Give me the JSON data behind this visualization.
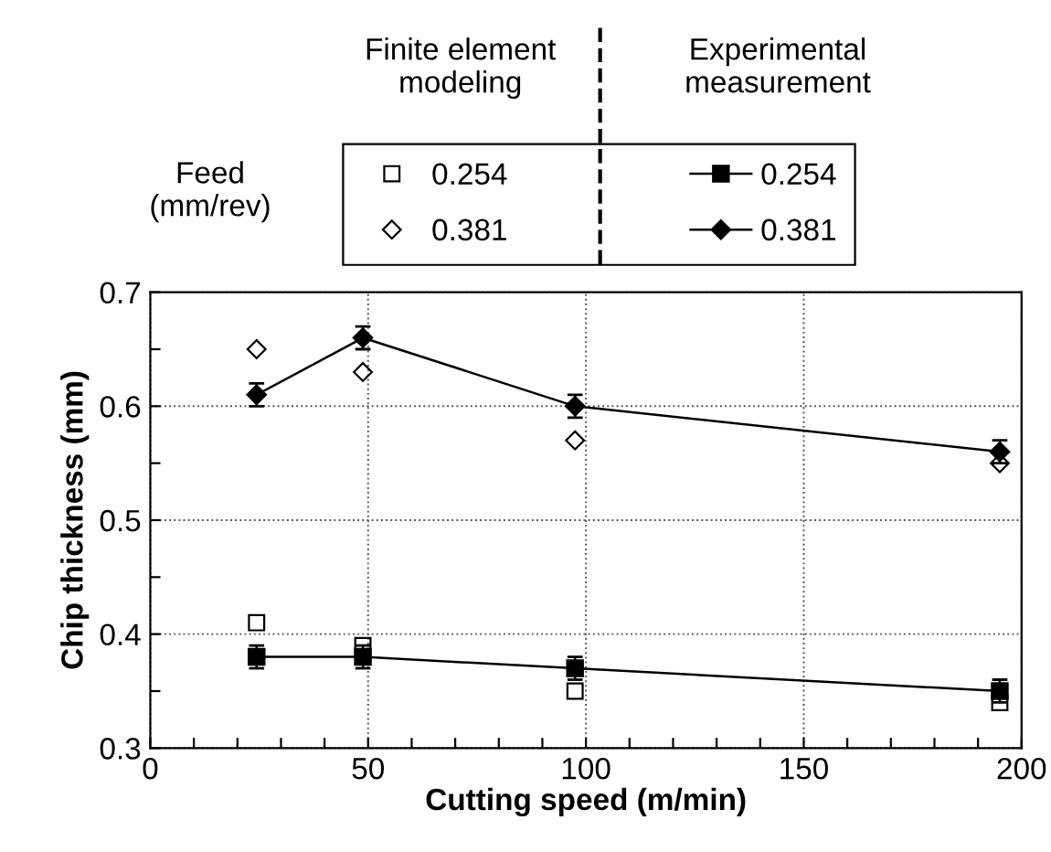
{
  "chart_data": {
    "type": "line",
    "xlabel": "Cutting speed (m/min)",
    "ylabel": "Chip thickness (mm)",
    "legend_title": "Feed\n(mm/rev)",
    "annotations": [
      "Finite element\nmodeling",
      "Experimental\nmeasurement"
    ],
    "x": [
      24.4,
      48.8,
      97.5,
      195
    ],
    "series": [
      {
        "name": "0.254",
        "type": "scatter",
        "marker": "square",
        "color": "#000000",
        "values": [
          0.41,
          0.39,
          0.35,
          0.34
        ]
      },
      {
        "name": "0.381",
        "type": "scatter",
        "marker": "diamond",
        "color": "#000000",
        "values": [
          0.65,
          0.63,
          0.57,
          0.55
        ]
      },
      {
        "name": "0.254",
        "marker": "square",
        "color": "#000000",
        "values": [
          0.38,
          0.38,
          0.37,
          0.35
        ],
        "errors": [
          0.01,
          0.01,
          0.01,
          0.01
        ]
      },
      {
        "name": "0.381",
        "marker": "diamond",
        "color": "#000000",
        "values": [
          0.61,
          0.66,
          0.6,
          0.56
        ],
        "errors": [
          0.01,
          0.01,
          0.01,
          0.01
        ]
      }
    ],
    "xlim": [
      0,
      200
    ],
    "ylim": [
      0.3,
      0.7
    ],
    "xticks": [
      0,
      {
        "value": 10,
        "label": null
      },
      {
        "value": 20,
        "label": null
      },
      {
        "value": 30,
        "label": null
      },
      {
        "value": 40,
        "label": null
      },
      50,
      {
        "value": 60,
        "label": null
      },
      {
        "value": 70,
        "label": null
      },
      {
        "value": 80,
        "label": null
      },
      {
        "value": 90,
        "label": null
      },
      100,
      {
        "value": 110,
        "label": null
      },
      {
        "value": 120,
        "label": null
      },
      {
        "value": 130,
        "label": null
      },
      {
        "value": 140,
        "label": null
      },
      150,
      {
        "value": 160,
        "label": null
      },
      {
        "value": 170,
        "label": null
      },
      {
        "value": 180,
        "label": null
      },
      {
        "value": 190,
        "label": null
      },
      200
    ],
    "yticks": [
      0.3,
      {
        "value": 0.35,
        "label": null
      },
      0.4,
      {
        "value": 0.45,
        "label": null
      },
      0.5,
      {
        "value": 0.55,
        "label": null
      },
      0.6,
      {
        "value": 0.65,
        "label": null
      },
      0.7
    ],
    "grid": true,
    "legend": "top",
    "line_style": "solid"
  }
}
